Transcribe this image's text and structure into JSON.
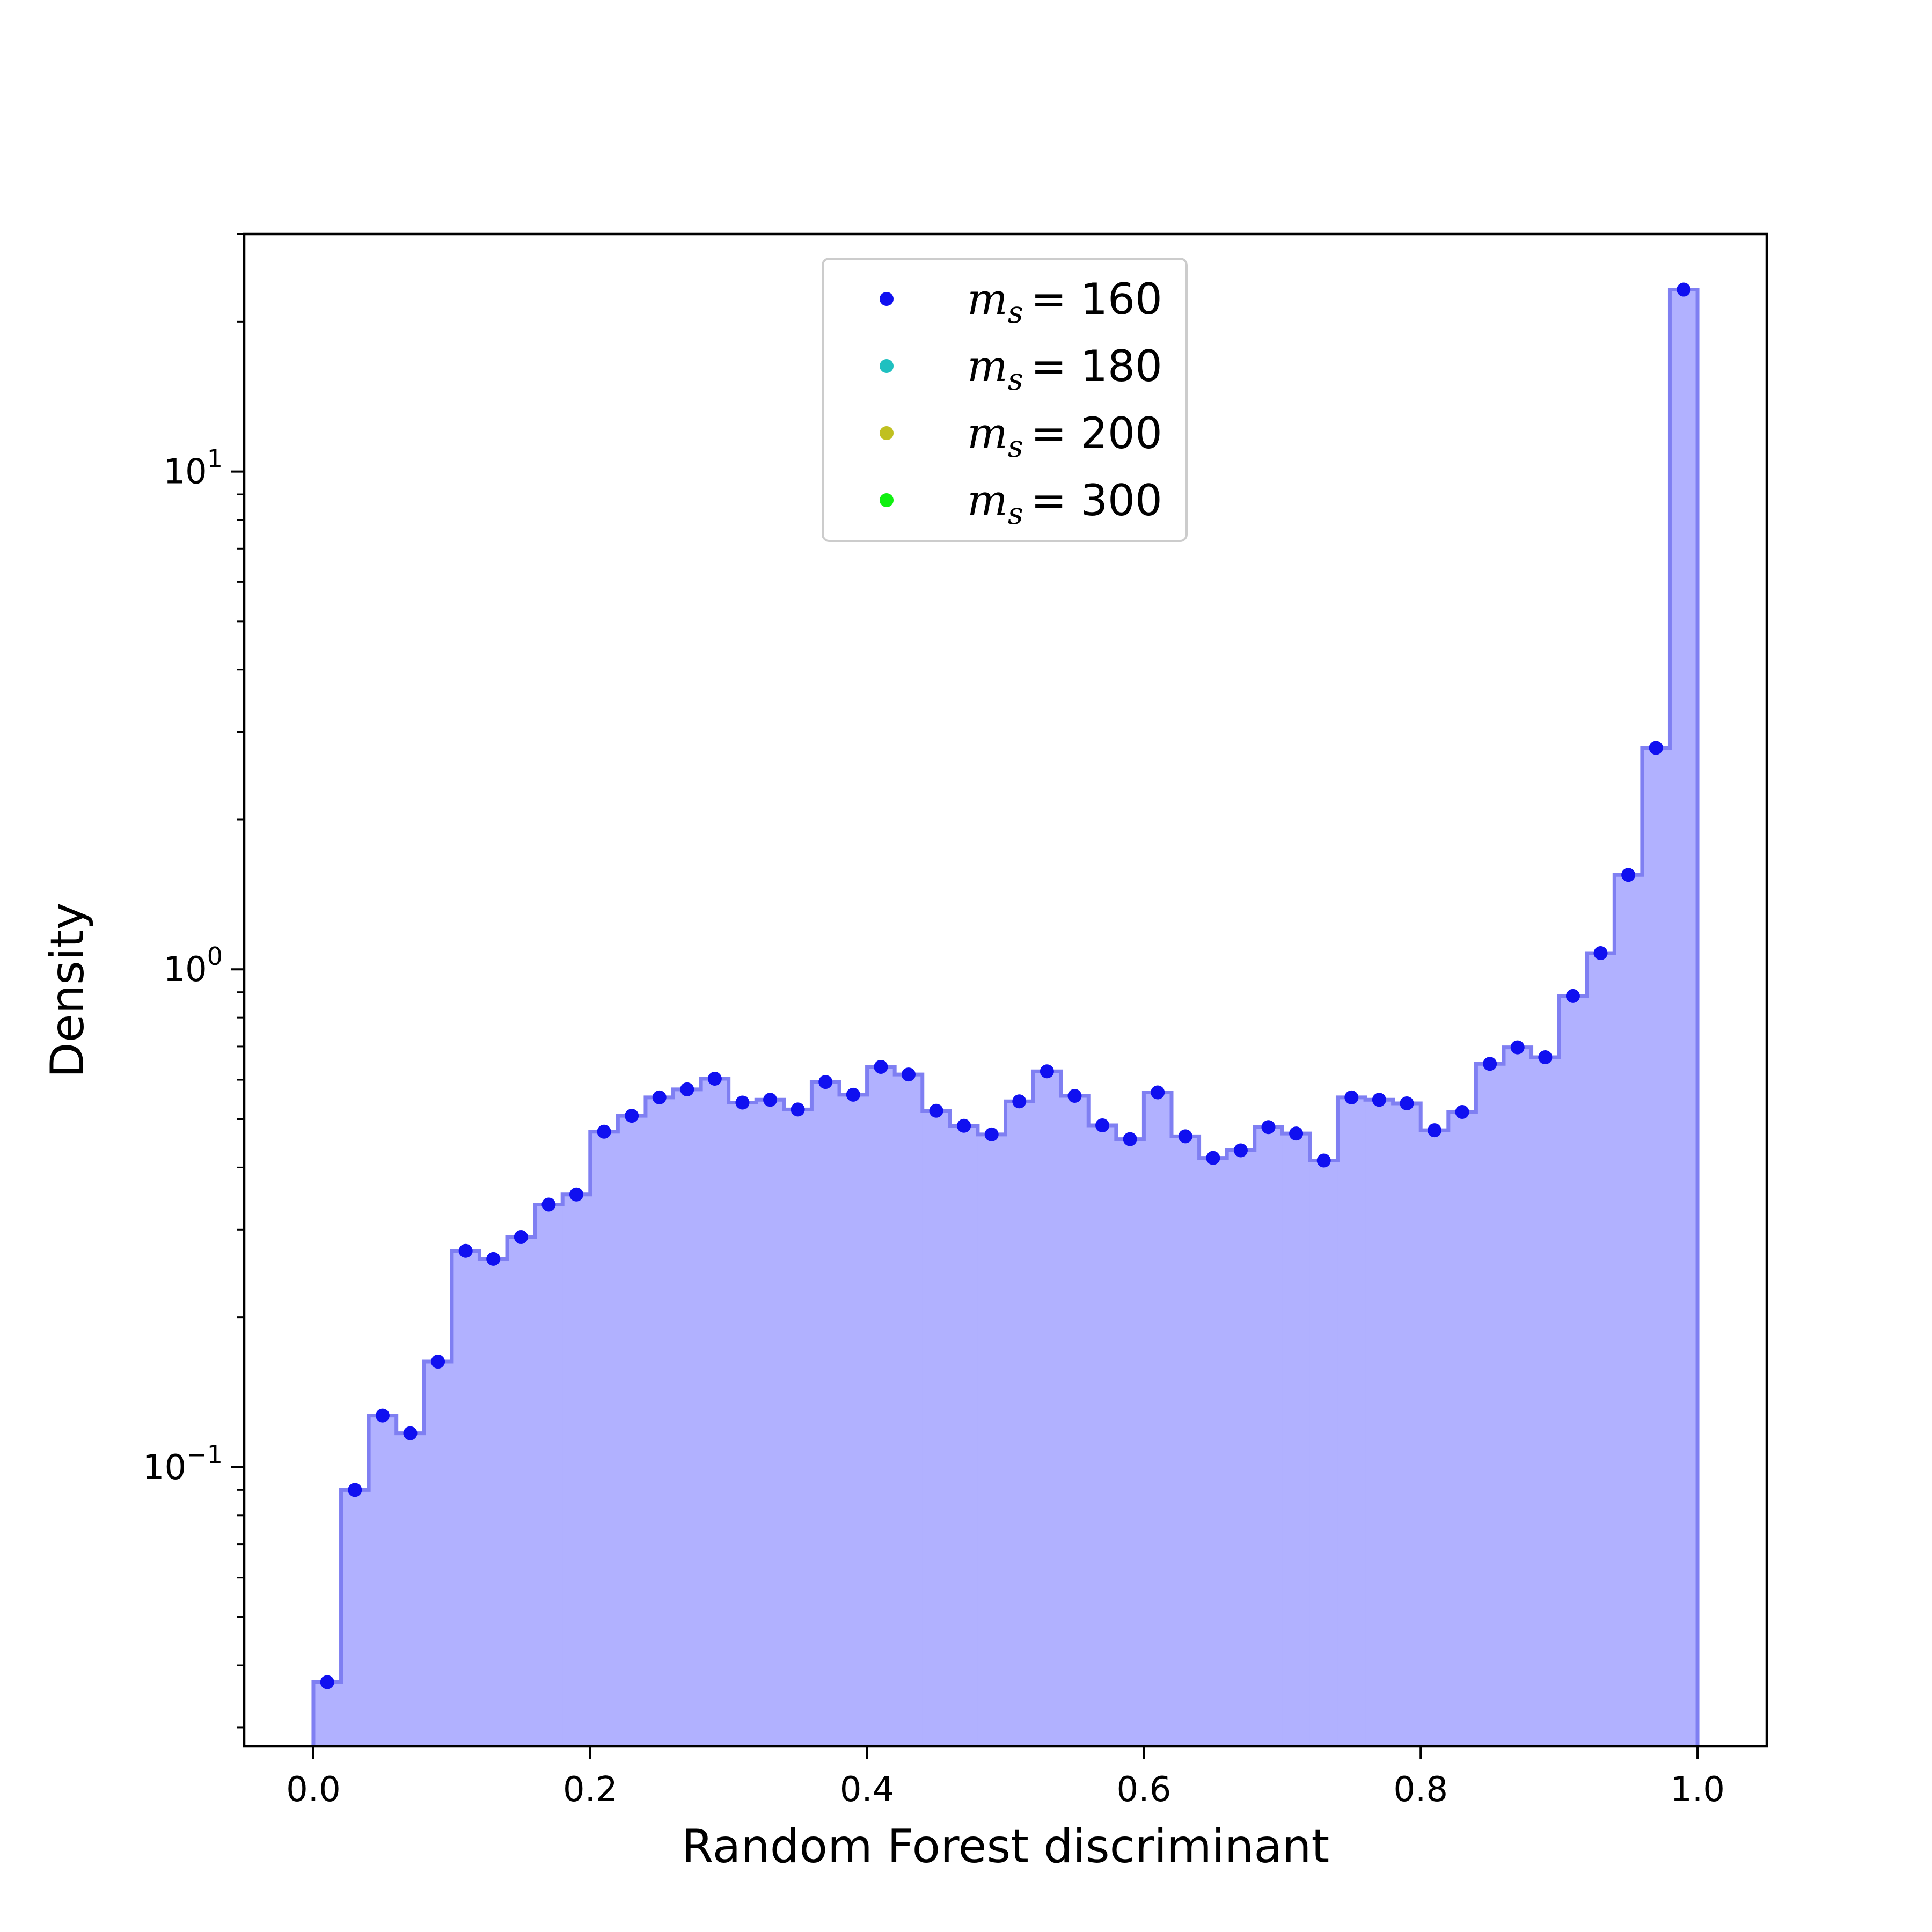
{
  "chart_data": {
    "type": "histogram",
    "xlabel": "Random Forest discriminant",
    "ylabel": "Density",
    "xlim": [
      -0.05,
      1.05
    ],
    "ylim": [
      0.0275,
      30
    ],
    "yscale": "log",
    "grid": false,
    "legend_placement": "upper-center",
    "x_ticks": [
      0.0,
      0.2,
      0.4,
      0.6,
      0.8,
      1.0
    ],
    "x_tick_labels": [
      "0.0",
      "0.2",
      "0.4",
      "0.6",
      "0.8",
      "1.0"
    ],
    "y_ticks": [
      0.1,
      1,
      10
    ],
    "y_tick_labels": [
      {
        "base": "10",
        "exp": "−1"
      },
      {
        "base": "10",
        "exp": "0"
      },
      {
        "base": "10",
        "exp": "1"
      }
    ],
    "bin_edges": [
      0.0,
      0.02,
      0.04,
      0.06,
      0.08,
      0.1,
      0.12,
      0.14,
      0.16,
      0.18,
      0.2,
      0.22,
      0.24,
      0.26,
      0.28,
      0.3,
      0.32,
      0.34,
      0.36,
      0.38,
      0.4,
      0.42,
      0.44,
      0.46,
      0.48,
      0.5,
      0.52,
      0.54,
      0.56,
      0.58,
      0.6,
      0.62,
      0.64,
      0.66,
      0.68,
      0.7,
      0.72,
      0.74,
      0.76,
      0.78,
      0.8,
      0.82,
      0.84,
      0.86,
      0.88,
      0.9,
      0.92,
      0.94,
      0.96,
      0.98,
      1.0
    ],
    "series": [
      {
        "name": "m_s = 160",
        "legend_label": {
          "var": "m",
          "sub": "s",
          "value": "= 160"
        },
        "color": "#1010f0",
        "fill_color": "#b1b1ff",
        "step_color": "#7f7ff2",
        "x": [
          0.01,
          0.03,
          0.05,
          0.07,
          0.09,
          0.11,
          0.13,
          0.15,
          0.17,
          0.19,
          0.21,
          0.23,
          0.25,
          0.27,
          0.29,
          0.31,
          0.33,
          0.35,
          0.37,
          0.39,
          0.41,
          0.43,
          0.45,
          0.47,
          0.49,
          0.51,
          0.53,
          0.55,
          0.57,
          0.59,
          0.61,
          0.63,
          0.65,
          0.67,
          0.69,
          0.71,
          0.73,
          0.75,
          0.77,
          0.79,
          0.81,
          0.83,
          0.85,
          0.87,
          0.89,
          0.91,
          0.93,
          0.95,
          0.97,
          0.99
        ],
        "values": [
          0.037,
          0.09,
          0.127,
          0.117,
          0.163,
          0.272,
          0.262,
          0.29,
          0.337,
          0.353,
          0.472,
          0.508,
          0.553,
          0.574,
          0.603,
          0.54,
          0.547,
          0.523,
          0.594,
          0.56,
          0.637,
          0.615,
          0.52,
          0.485,
          0.466,
          0.543,
          0.624,
          0.557,
          0.486,
          0.456,
          0.566,
          0.462,
          0.418,
          0.433,
          0.482,
          0.468,
          0.413,
          0.553,
          0.547,
          0.538,
          0.475,
          0.517,
          0.646,
          0.697,
          0.666,
          0.884,
          1.078,
          1.548,
          2.786,
          23.2
        ]
      },
      {
        "name": "m_s = 180",
        "legend_label": {
          "var": "m",
          "sub": "s",
          "value": "= 180"
        },
        "color": "#1fc0c0",
        "values": []
      },
      {
        "name": "m_s = 200",
        "legend_label": {
          "var": "m",
          "sub": "s",
          "value": "= 200"
        },
        "color": "#c0c020",
        "values": []
      },
      {
        "name": "m_s = 300",
        "legend_label": {
          "var": "m",
          "sub": "s",
          "value": "= 300"
        },
        "color": "#10f010",
        "values": []
      }
    ]
  }
}
